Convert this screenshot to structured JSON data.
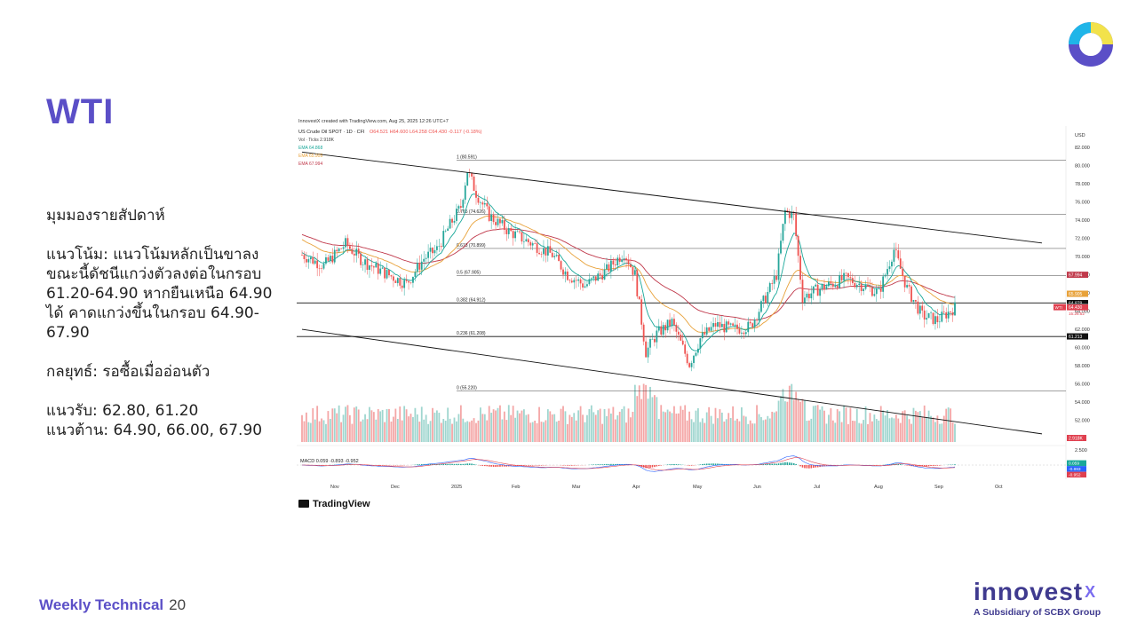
{
  "slide": {
    "title": "WTI",
    "footer_label": "Weekly Technical",
    "page_number": "20"
  },
  "brand": {
    "name": "innovest",
    "mark": "X",
    "subtitle": "A Subsidiary of SCBX Group",
    "logo_icon": "ring-logo-icon",
    "colors": {
      "purple": "#5b4fc7",
      "yellow": "#f2e24b",
      "cyan": "#1fb5e8",
      "navy": "#3f3a8f"
    }
  },
  "commentary": {
    "heading": "มุมมองรายสัปดาห์",
    "trend_lines": [
      "แนวโน้ม: แนวโน้มหลักเป็นขาลง",
      "ขณะนี้ดัชนีแกว่งตัวลงต่อในกรอบ",
      "61.20-64.90 หากยืนเหนือ 64.90",
      "ได้ คาดแกว่งขึ้นในกรอบ 64.90-",
      "67.90"
    ],
    "strategy": "กลยุทธ์: รอซื้อเมื่ออ่อนตัว",
    "support": "แนวรับ: 62.80, 61.20",
    "resistance": "แนวต้าน: 64.90, 66.00, 67.90"
  },
  "chart_data": {
    "type": "candlestick",
    "header": "InnovestX created with TradingView.com, Aug 25, 2025 12:26 UTC+7",
    "symbol_line": "US Crude Oil SPOT · 1D · CFI",
    "ohlc_readout": "O64.521 H64.600 L64.258 C64.430 -0.117 (-0.18%)",
    "legend": [
      "Vol · Ticks 2.918K",
      "EMA 64.868",
      "EMA 65.905",
      "EMA 67.994"
    ],
    "currency": "USD",
    "ylim": [
      50,
      83
    ],
    "y_ticks": [
      52,
      54,
      56,
      58,
      60,
      62,
      64,
      66,
      68,
      70,
      72,
      74,
      76,
      78,
      80,
      82
    ],
    "x_ticks": [
      "Nov",
      "Dec",
      "2025",
      "Feb",
      "Mar",
      "Apr",
      "May",
      "Jun",
      "Jul",
      "Aug",
      "Sep",
      "Oct"
    ],
    "price_waypoints": [
      [
        0,
        70.2
      ],
      [
        10,
        69.0
      ],
      [
        20,
        71.4
      ],
      [
        28,
        69.5
      ],
      [
        38,
        68.2
      ],
      [
        48,
        67.0
      ],
      [
        56,
        69.8
      ],
      [
        62,
        70.8
      ],
      [
        68,
        73.5
      ],
      [
        73,
        75.5
      ],
      [
        76,
        79.5
      ],
      [
        80,
        77.0
      ],
      [
        86,
        74.5
      ],
      [
        95,
        72.8
      ],
      [
        105,
        71.5
      ],
      [
        115,
        70.2
      ],
      [
        122,
        68.0
      ],
      [
        130,
        66.8
      ],
      [
        140,
        68.5
      ],
      [
        148,
        70.5
      ],
      [
        153,
        68.0
      ],
      [
        158,
        59.5
      ],
      [
        163,
        61.5
      ],
      [
        170,
        62.8
      ],
      [
        178,
        58.2
      ],
      [
        183,
        61.0
      ],
      [
        190,
        62.5
      ],
      [
        198,
        62.0
      ],
      [
        206,
        62.3
      ],
      [
        213,
        65.5
      ],
      [
        218,
        68.0
      ],
      [
        222,
        75.0
      ],
      [
        226,
        74.5
      ],
      [
        230,
        65.5
      ],
      [
        238,
        66.5
      ],
      [
        250,
        67.6
      ],
      [
        258,
        66.8
      ],
      [
        265,
        66.0
      ],
      [
        272,
        70.8
      ],
      [
        278,
        66.5
      ],
      [
        285,
        63.5
      ],
      [
        292,
        63.0
      ],
      [
        300,
        64.4
      ]
    ],
    "fibonacci": [
      {
        "level": "1",
        "price": 80.591,
        "label": "1 (80.591)"
      },
      {
        "level": "0.765",
        "price": 74.626,
        "label": "0.765 (74.626)"
      },
      {
        "level": "0.618",
        "price": 70.899,
        "label": "0.618 (70.899)"
      },
      {
        "level": "0.5",
        "price": 67.905,
        "label": "0.5 (67.905)"
      },
      {
        "level": "0.382",
        "price": 64.912,
        "label": "0.382 (64.912)"
      },
      {
        "level": "0.236",
        "price": 61.208,
        "label": "0.236 (61.208)"
      },
      {
        "level": "0",
        "price": 55.22,
        "label": "0 (55.220)"
      }
    ],
    "trend_channel": {
      "upper": [
        [
          0,
          81.5
        ],
        [
          340,
          71.5
        ]
      ],
      "lower": [
        [
          0,
          62.0
        ],
        [
          340,
          50.5
        ]
      ]
    },
    "ema_colors": {
      "fast": "#1aa89a",
      "mid": "#e8a23a",
      "slow": "#c0394b"
    },
    "price_tags": [
      {
        "text": "67.994",
        "price": 67.994,
        "color": "#c0394b"
      },
      {
        "text": "65.905",
        "price": 65.905,
        "color": "#e8a23a"
      },
      {
        "text": "64.879",
        "price": 64.879,
        "color": "#111111"
      },
      {
        "text": "64.868",
        "price": 64.868,
        "color": "#1aa89a"
      },
      {
        "text": "64.430",
        "price": 64.43,
        "color": "#e0404f"
      },
      {
        "text": "61.213",
        "price": 61.213,
        "color": "#111111"
      }
    ],
    "last_price_symbol": "WTI",
    "countdown": "15:28:52",
    "volume_tag": "2.918K",
    "macd": {
      "legend": "MACD 0.059 -0.893 -0.952",
      "axis_tick": "2.500",
      "tags": [
        {
          "text": "0.059",
          "color": "#1aa89a"
        },
        {
          "text": "-0.893",
          "color": "#2962ff"
        },
        {
          "text": "-0.952",
          "color": "#e0404f"
        }
      ]
    },
    "colors": {
      "up": "#26a69a",
      "down": "#ef5350",
      "vol_up": "#9fd6cf",
      "vol_down": "#f4a6a6"
    }
  }
}
